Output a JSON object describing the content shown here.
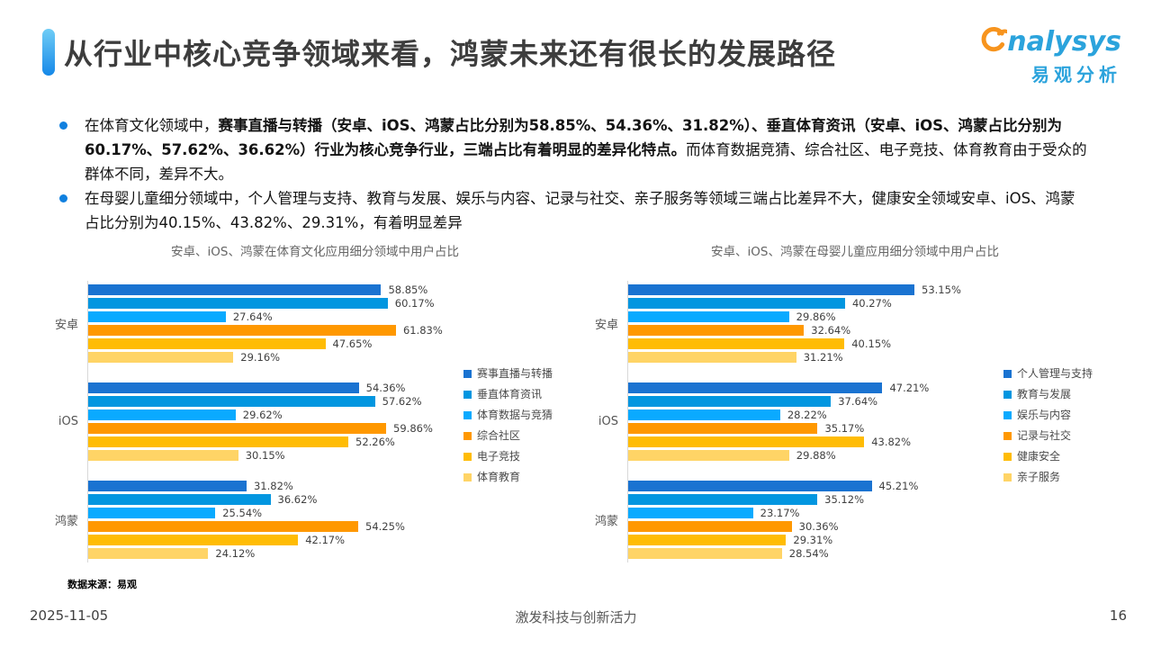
{
  "header": {
    "title": "从行业中核心竞争领域来看，鸿蒙未来还有很长的发展路径"
  },
  "logo": {
    "brand": "analysys",
    "brand_rest": "nalysys",
    "brand_cn": "易观分析",
    "brand_color": "#2ba3dc",
    "swoosh_color": "#f7941e"
  },
  "bullets": [
    {
      "segments": [
        {
          "text": "在体育文化领域中，",
          "bold": false
        },
        {
          "text": "赛事直播与转播（安卓、iOS、鸿蒙占比分别为58.85%、54.36%、31.82%）、垂直体育资讯（安卓、iOS、鸿蒙占比分别为60.17%、57.62%、36.62%）行业为核心竞争行业，三端占比有着明显的差异化特点。",
          "bold": true
        },
        {
          "text": "而体育数据竞猜、综合社区、电子竞技、体育教育由于受众的群体不同，差异不大。",
          "bold": false
        }
      ]
    },
    {
      "segments": [
        {
          "text": "在母婴儿童细分领域中，个人管理与支持、教育与发展、娱乐与内容、记录与社交、亲子服务等领域三端占比差异不大，健康安全领域安卓、iOS、鸿蒙占比分别为40.15%、43.82%、29.31%，有着明显差异",
          "bold": false
        }
      ]
    }
  ],
  "chart_data": [
    {
      "type": "bar",
      "orientation": "horizontal",
      "title": "安卓、iOS、鸿蒙在体育文化应用细分领域中用户占比",
      "categories": [
        "安卓",
        "iOS",
        "鸿蒙"
      ],
      "series": [
        {
          "name": "赛事直播与转播",
          "color": "#1a73d1",
          "values": [
            58.85,
            54.36,
            31.82
          ]
        },
        {
          "name": "垂直体育资讯",
          "color": "#0296e0",
          "values": [
            60.17,
            57.62,
            36.62
          ]
        },
        {
          "name": "体育数据与竞猜",
          "color": "#0aaaff",
          "values": [
            27.64,
            29.62,
            25.54
          ]
        },
        {
          "name": "综合社区",
          "color": "#ff9800",
          "values": [
            61.83,
            59.86,
            54.25
          ]
        },
        {
          "name": "电子竞技",
          "color": "#ffbc05",
          "values": [
            47.65,
            52.26,
            42.17
          ]
        },
        {
          "name": "体育教育",
          "color": "#ffd466",
          "values": [
            29.16,
            30.15,
            24.12
          ]
        }
      ],
      "value_suffix": "%",
      "xlim": [
        0,
        66
      ],
      "grid": false,
      "legend_position": "right"
    },
    {
      "type": "bar",
      "orientation": "horizontal",
      "title": "安卓、iOS、鸿蒙在母婴儿童应用细分领域中用户占比",
      "categories": [
        "安卓",
        "iOS",
        "鸿蒙"
      ],
      "series": [
        {
          "name": "个人管理与支持",
          "color": "#1a73d1",
          "values": [
            53.15,
            47.21,
            45.21
          ]
        },
        {
          "name": "教育与发展",
          "color": "#0296e0",
          "values": [
            40.27,
            37.64,
            35.12
          ]
        },
        {
          "name": "娱乐与内容",
          "color": "#0aaaff",
          "values": [
            29.86,
            28.22,
            23.17
          ]
        },
        {
          "name": "记录与社交",
          "color": "#ff9800",
          "values": [
            32.64,
            35.17,
            30.36
          ]
        },
        {
          "name": "健康安全",
          "color": "#ffbc05",
          "values": [
            40.15,
            43.82,
            29.31
          ]
        },
        {
          "name": "亲子服务",
          "color": "#ffd466",
          "values": [
            31.21,
            29.88,
            28.54
          ]
        }
      ],
      "value_suffix": "%",
      "xlim": [
        0,
        61
      ],
      "grid": false,
      "legend_position": "right"
    }
  ],
  "source_note": "数据来源：易观",
  "footer": {
    "date": "2025-11-05",
    "slogan": "激发科技与创新活力",
    "page": "16"
  }
}
